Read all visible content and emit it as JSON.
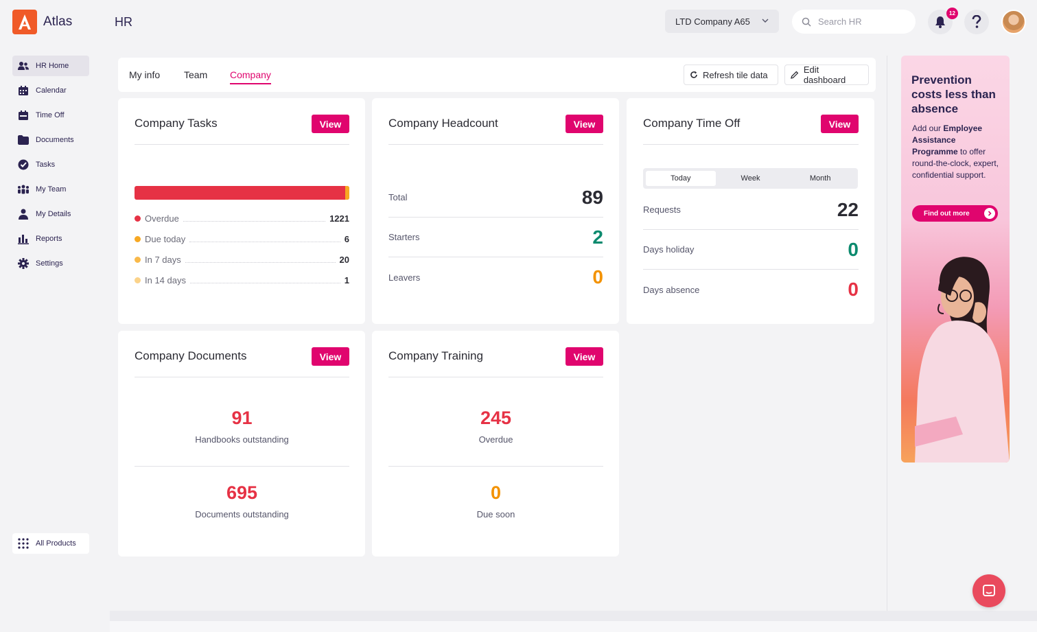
{
  "app": {
    "brand": "Atlas",
    "section": "HR"
  },
  "header": {
    "company": "LTD Company A65",
    "search_placeholder": "Search HR",
    "notification_count": "12"
  },
  "sidebar": {
    "items": [
      {
        "label": "HR Home",
        "icon": "people-icon",
        "active": true
      },
      {
        "label": "Calendar",
        "icon": "calendar-icon"
      },
      {
        "label": "Time Off",
        "icon": "time-off-icon"
      },
      {
        "label": "Documents",
        "icon": "folder-icon"
      },
      {
        "label": "Tasks",
        "icon": "check-circle-icon"
      },
      {
        "label": "My Team",
        "icon": "team-icon"
      },
      {
        "label": "My Details",
        "icon": "person-icon"
      },
      {
        "label": "Reports",
        "icon": "bar-chart-icon"
      },
      {
        "label": "Settings",
        "icon": "gear-icon"
      }
    ],
    "all_products": "All Products"
  },
  "tabs": [
    {
      "label": "My info"
    },
    {
      "label": "Team"
    },
    {
      "label": "Company",
      "active": true
    }
  ],
  "toolbar": {
    "refresh": "Refresh tile data",
    "edit": "Edit dashboard"
  },
  "view_label": "View",
  "cards": {
    "tasks": {
      "title": "Company Tasks",
      "rows": [
        {
          "label": "Overdue",
          "value": "1221",
          "color": "#e63245"
        },
        {
          "label": "Due today",
          "value": "6",
          "color": "#f7a823"
        },
        {
          "label": "In 7 days",
          "value": "20",
          "color": "#f9b94a"
        },
        {
          "label": "In 14 days",
          "value": "1",
          "color": "#fbd38a"
        }
      ]
    },
    "headcount": {
      "title": "Company Headcount",
      "rows": [
        {
          "label": "Total",
          "value": "89",
          "color": "#2b2b33"
        },
        {
          "label": "Starters",
          "value": "2",
          "color": "#0c8a6e"
        },
        {
          "label": "Leavers",
          "value": "0",
          "color": "#f39200"
        }
      ]
    },
    "timeoff": {
      "title": "Company Time Off",
      "periods": [
        "Today",
        "Week",
        "Month"
      ],
      "rows": [
        {
          "label": "Requests",
          "value": "22",
          "color": "#2b2b33"
        },
        {
          "label": "Days holiday",
          "value": "0",
          "color": "#0c8a6e"
        },
        {
          "label": "Days absence",
          "value": "0",
          "color": "#e63245"
        }
      ]
    },
    "documents": {
      "title": "Company Documents",
      "stats": [
        {
          "value": "91",
          "label": "Handbooks outstanding",
          "color": "#e63245"
        },
        {
          "value": "695",
          "label": "Documents outstanding",
          "color": "#e63245"
        }
      ]
    },
    "training": {
      "title": "Company Training",
      "stats": [
        {
          "value": "245",
          "label": "Overdue",
          "color": "#e63245"
        },
        {
          "value": "0",
          "label": "Due soon",
          "color": "#f39200"
        }
      ]
    }
  },
  "promo": {
    "headline": "Prevention costs less than absence",
    "body_pre": "Add our ",
    "body_bold": "Employee Assistance Programme",
    "body_post": " to offer round-the-clock, expert, confidential support.",
    "cta": "Find out more"
  }
}
